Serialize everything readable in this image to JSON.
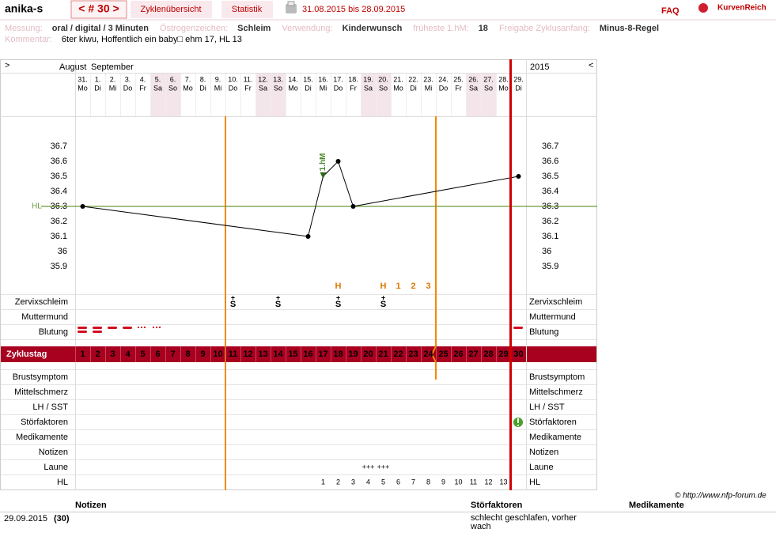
{
  "header": {
    "user": "anika-s",
    "cycle": "< # 30 >",
    "tabs": [
      "Zyklenübersicht",
      "Statistik"
    ],
    "period": "31.08.2015 bis 28.09.2015",
    "faq": "FAQ",
    "logo": "KurvenReich"
  },
  "info": {
    "fields": [
      {
        "label": "Messung:",
        "value": "oral / digital / 3 Minuten"
      },
      {
        "label": "Östrogenzeichen:",
        "value": "Schleim"
      },
      {
        "label": "Verwendung:",
        "value": "Kinderwunsch"
      },
      {
        "label": "früheste 1.hM:",
        "value": "18"
      },
      {
        "label": "Freigabe Zyklusanfang:",
        "value": "Minus-8-Regel"
      }
    ],
    "comment": {
      "label": "Kommentar:",
      "value": "6ter kiwu, Hoffentlich ein baby□ ehm 17, HL 13"
    }
  },
  "chart": {
    "nav_left": ">",
    "nav_right": "<",
    "months": [
      "August",
      "September"
    ],
    "year": "2015",
    "days": [
      {
        "date": "31.",
        "weekday": "Mo"
      },
      {
        "date": "1.",
        "weekday": "Di"
      },
      {
        "date": "2.",
        "weekday": "Mi"
      },
      {
        "date": "3.",
        "weekday": "Do"
      },
      {
        "date": "4.",
        "weekday": "Fr"
      },
      {
        "date": "5.",
        "weekday": "Sa",
        "shaded": true
      },
      {
        "date": "6.",
        "weekday": "So",
        "shaded": true
      },
      {
        "date": "7.",
        "weekday": "Mo"
      },
      {
        "date": "8.",
        "weekday": "Di"
      },
      {
        "date": "9.",
        "weekday": "Mi"
      },
      {
        "date": "10.",
        "weekday": "Do"
      },
      {
        "date": "11.",
        "weekday": "Fr"
      },
      {
        "date": "12.",
        "weekday": "Sa",
        "shaded": true
      },
      {
        "date": "13.",
        "weekday": "So",
        "shaded": true
      },
      {
        "date": "14.",
        "weekday": "Mo"
      },
      {
        "date": "15.",
        "weekday": "Di"
      },
      {
        "date": "16.",
        "weekday": "Mi"
      },
      {
        "date": "17.",
        "weekday": "Do"
      },
      {
        "date": "18.",
        "weekday": "Fr"
      },
      {
        "date": "19.",
        "weekday": "Sa",
        "shaded": true
      },
      {
        "date": "20.",
        "weekday": "So",
        "shaded": true
      },
      {
        "date": "21.",
        "weekday": "Mo"
      },
      {
        "date": "22.",
        "weekday": "Di"
      },
      {
        "date": "23.",
        "weekday": "Mi"
      },
      {
        "date": "24.",
        "weekday": "Do"
      },
      {
        "date": "25.",
        "weekday": "Fr"
      },
      {
        "date": "26.",
        "weekday": "Sa",
        "shaded": true
      },
      {
        "date": "27.",
        "weekday": "So",
        "shaded": true
      },
      {
        "date": "28.",
        "weekday": "Mo"
      },
      {
        "date": "29.",
        "weekday": "Di"
      }
    ],
    "temperature": {
      "x": [
        1,
        16,
        17,
        18,
        19,
        30
      ],
      "values": [
        36.3,
        36.1,
        36.5,
        36.6,
        36.3,
        36.5
      ],
      "ylim": [
        35.8,
        36.9
      ],
      "yticks": [
        36.7,
        36.6,
        36.5,
        36.4,
        36.3,
        36.2,
        36.1,
        36,
        35.9
      ],
      "hl": {
        "label": "HL",
        "value": 36.3
      },
      "annotation": {
        "text": "1.hM",
        "x": 17
      }
    },
    "temp_notes": [
      {
        "day": 18,
        "text": "H"
      },
      {
        "day": 21,
        "text": "H"
      },
      {
        "day": 22,
        "text": "1"
      },
      {
        "day": 23,
        "text": "2"
      },
      {
        "day": 24,
        "text": "3"
      }
    ],
    "upper_rows": [
      {
        "label": "Zervixschleim",
        "color": "#e07800",
        "entries": [
          {
            "day": 11,
            "top": "+",
            "text": "S"
          },
          {
            "day": 14,
            "top": "+",
            "text": "S"
          },
          {
            "day": 18,
            "top": "+",
            "text": "S"
          },
          {
            "day": 21,
            "top": "+",
            "text": "S"
          }
        ]
      },
      {
        "label": "Muttermund",
        "color": "#4a5fc1",
        "entries": []
      },
      {
        "label": "Blutung",
        "color": "#000000",
        "entries": []
      }
    ],
    "cycle_days": {
      "label": "Zyklustag",
      "values": [
        1,
        2,
        3,
        4,
        5,
        6,
        7,
        8,
        9,
        10,
        11,
        12,
        13,
        14,
        15,
        16,
        17,
        18,
        19,
        20,
        21,
        22,
        23,
        24,
        25,
        26,
        27,
        28,
        29,
        30
      ],
      "colors": [
        "#ffffff",
        "#ffffff",
        "#ffffff",
        "#ffffff",
        "#ffffff",
        "#ffffff",
        "#ffffff",
        "#ffffff",
        "#ffffff",
        "#ffffff",
        "#ffb040",
        "#ffb040",
        "#ffb040",
        "#ffb040",
        "#ffb040",
        "#ffb040",
        "#ffb040",
        "#ffb040",
        "#ffb040",
        "#ffb040",
        "#ffb040",
        "#ffb040",
        "#ffb040",
        "#ffb040",
        "#ffffff",
        "#ffffff",
        "#ffffff",
        "#ffffff",
        "#ffffff",
        "#ffffff"
      ]
    },
    "lower_rows": [
      {
        "label": "Brustsymptom",
        "entries": []
      },
      {
        "label": "Mittelschmerz",
        "entries": []
      },
      {
        "label": "LH / SST",
        "entries": []
      },
      {
        "label": "Störfaktoren",
        "entries": []
      },
      {
        "label": "Medikamente",
        "entries": []
      },
      {
        "label": "Notizen",
        "entries": []
      },
      {
        "label": "Laune",
        "entries": [
          {
            "day": 20,
            "text": "+++"
          },
          {
            "day": 21,
            "text": "+++"
          }
        ]
      },
      {
        "label": "HL",
        "entries": [
          {
            "day": 17,
            "text": 1
          },
          {
            "day": 18,
            "text": 2
          },
          {
            "day": 19,
            "text": 3
          },
          {
            "day": 20,
            "text": 4
          },
          {
            "day": 21,
            "text": 5
          },
          {
            "day": 22,
            "text": 6
          },
          {
            "day": 23,
            "text": 7
          },
          {
            "day": 24,
            "text": 8
          },
          {
            "day": 25,
            "text": 9
          },
          {
            "day": 26,
            "text": 10
          },
          {
            "day": 27,
            "text": 11
          },
          {
            "day": 28,
            "text": 12
          },
          {
            "day": 29,
            "text": 13
          }
        ]
      }
    ]
  },
  "footer": {
    "copyright": "© http://www.nfp-forum.de",
    "headers": [
      "Notizen",
      "Störfaktoren",
      "Medikamente"
    ],
    "rows": [
      {
        "date": "29.09.2015",
        "cycle": "(30)",
        "stoerfaktoren": "schlecht geschlafen, vorher wach"
      }
    ]
  }
}
